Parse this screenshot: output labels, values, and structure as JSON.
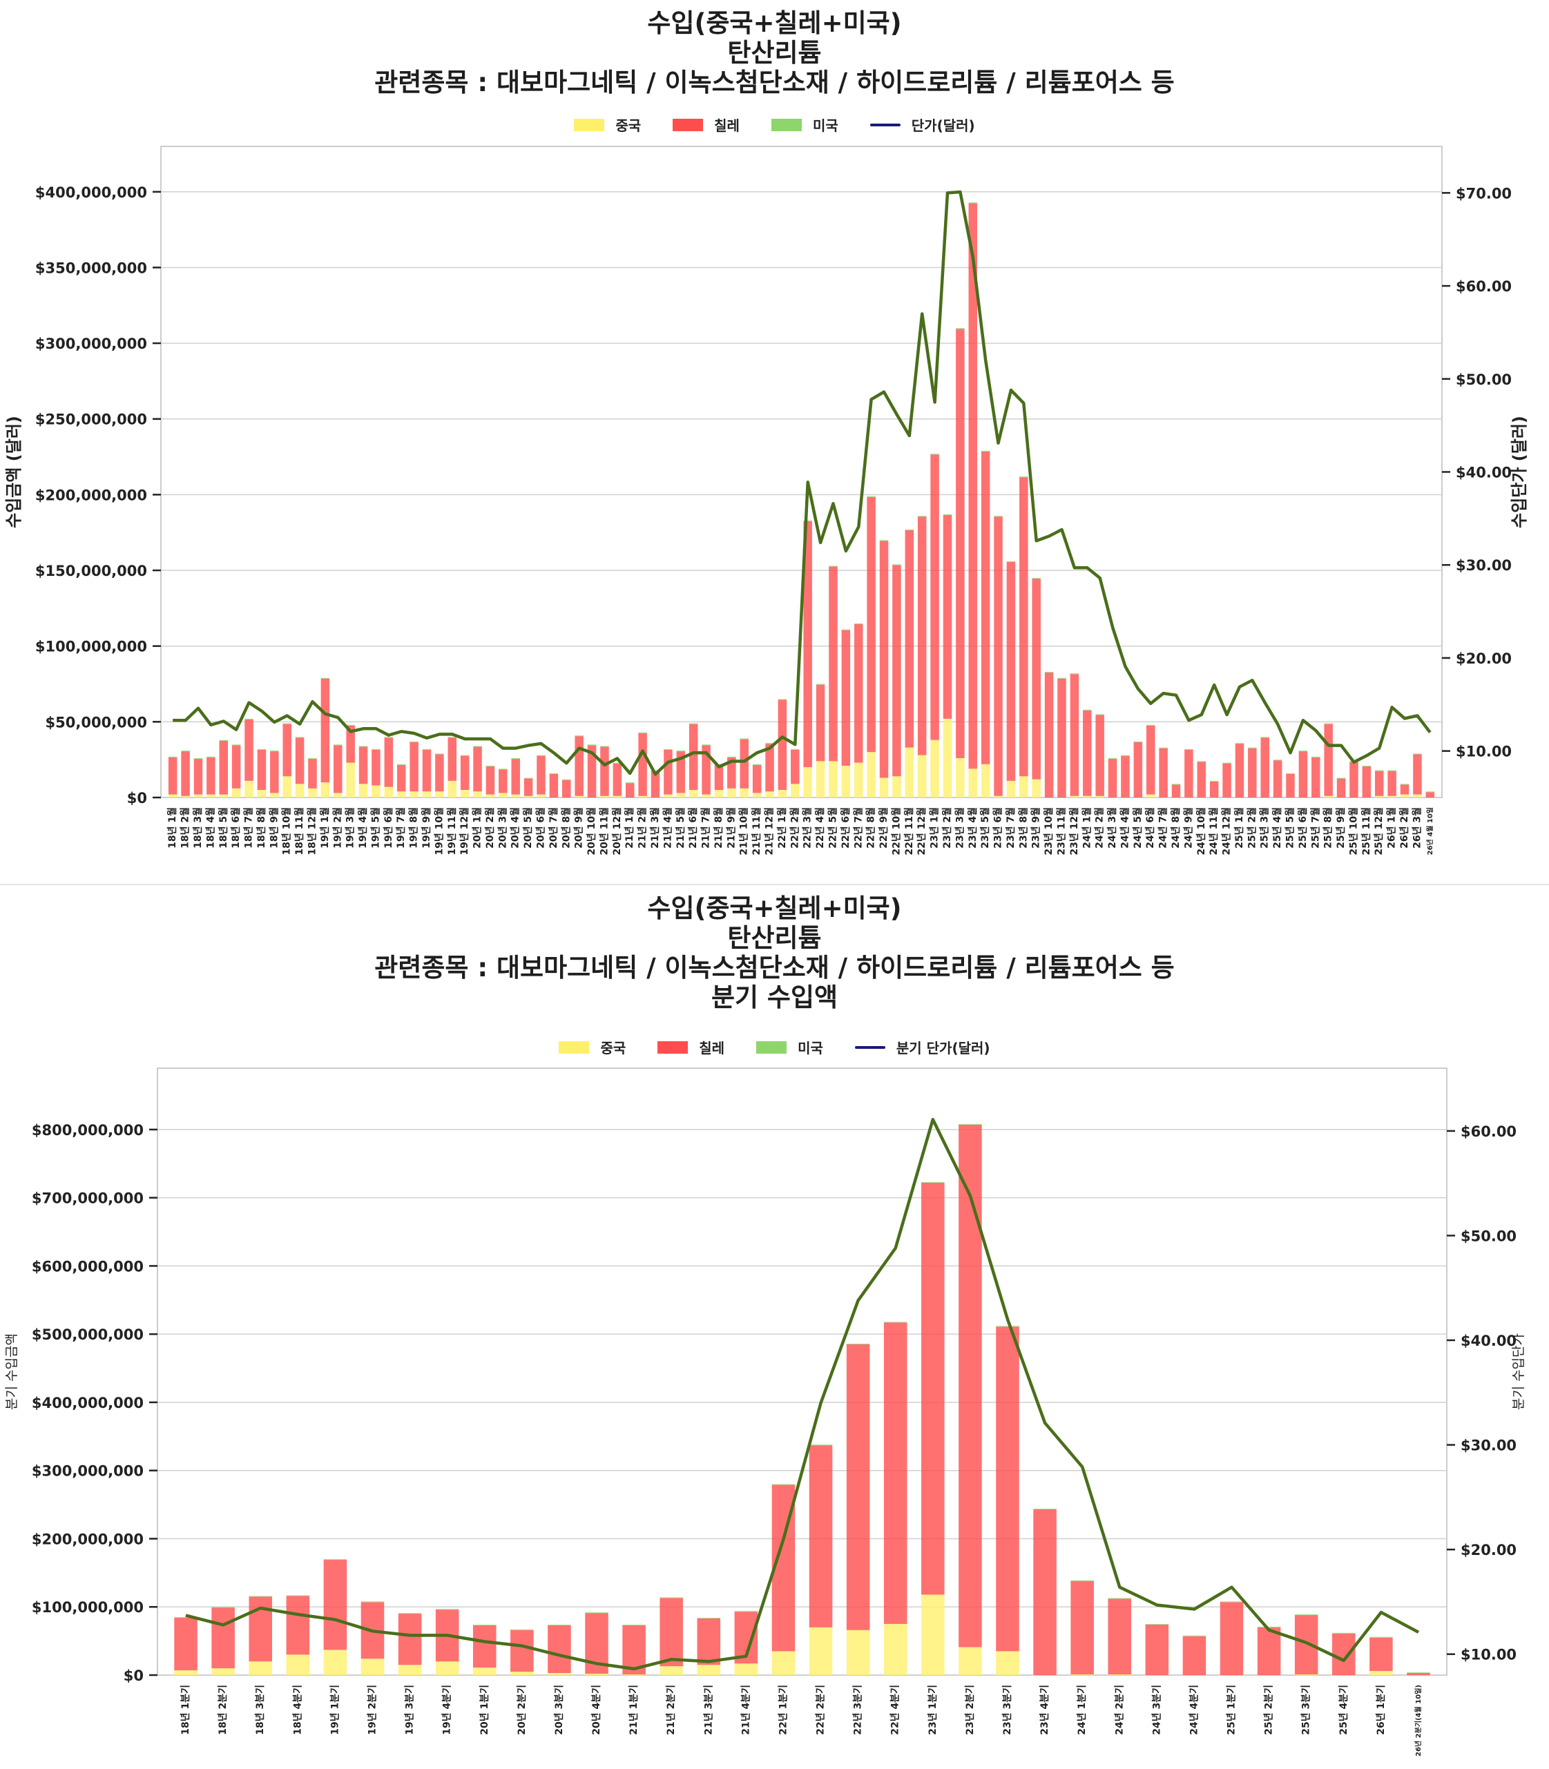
{
  "chart_data": [
    {
      "type": "bar",
      "stacked": true,
      "title_lines": [
        "수입(중국+칠레+미국)",
        "탄산리튬",
        "관련종목 : 대보마그네틱 / 이녹스첨단소재 / 하이드로리튬 / 리튬포어스 등"
      ],
      "ylabel": "수입금액 (달러)",
      "y2label": "수입단가 (달러)",
      "ylim": [
        0,
        430000000
      ],
      "y2lim": [
        5,
        75
      ],
      "yticks": [
        "$0",
        "$50,000,000",
        "$100,000,000",
        "$150,000,000",
        "$200,000,000",
        "$250,000,000",
        "$300,000,000",
        "$350,000,000",
        "$400,000,000"
      ],
      "ytick_values": [
        0,
        50000000,
        100000000,
        150000000,
        200000000,
        250000000,
        300000000,
        350000000,
        400000000
      ],
      "y2ticks": [
        "$10.00",
        "$20.00",
        "$30.00",
        "$40.00",
        "$50.00",
        "$60.00",
        "$70.00"
      ],
      "y2tick_values": [
        10,
        20,
        30,
        40,
        50,
        60,
        70
      ],
      "grid": true,
      "legend": {
        "placement": "top-center",
        "entries": [
          {
            "label": "중국",
            "color": "#fff06b"
          },
          {
            "label": "칠레",
            "color": "#ff4d4d"
          },
          {
            "label": "미국",
            "color": "#8ed66b"
          },
          {
            "label": "단가(달러)",
            "color": "#1a1a7a",
            "kind": "line"
          }
        ]
      },
      "categories": [
        "18년 1월",
        "18년 2월",
        "18년 3월",
        "18년 4월",
        "18년 5월",
        "18년 6월",
        "18년 7월",
        "18년 8월",
        "18년 9월",
        "18년 10월",
        "18년 11월",
        "18년 12월",
        "19년 1월",
        "19년 2월",
        "19년 3월",
        "19년 4월",
        "19년 5월",
        "19년 6월",
        "19년 7월",
        "19년 8월",
        "19년 9월",
        "19년 10월",
        "19년 11월",
        "19년 12월",
        "20년 1월",
        "20년 2월",
        "20년 3월",
        "20년 4월",
        "20년 5월",
        "20년 6월",
        "20년 7월",
        "20년 8월",
        "20년 9월",
        "20년 10월",
        "20년 11월",
        "20년 12월",
        "21년 1월",
        "21년 2월",
        "21년 3월",
        "21년 4월",
        "21년 5월",
        "21년 6월",
        "21년 7월",
        "21년 8월",
        "21년 9월",
        "21년 10월",
        "21년 11월",
        "21년 12월",
        "22년 1월",
        "22년 2월",
        "22년 3월",
        "22년 4월",
        "22년 5월",
        "22년 6월",
        "22년 7월",
        "22년 8월",
        "22년 9월",
        "22년 10월",
        "22년 11월",
        "22년 12월",
        "23년 1월",
        "23년 2월",
        "23년 3월",
        "23년 4월",
        "23년 5월",
        "23년 6월",
        "23년 7월",
        "23년 8월",
        "23년 9월",
        "23년 10월",
        "23년 11월",
        "23년 12월",
        "24년 1월",
        "24년 2월",
        "24년 3월",
        "24년 4월",
        "24년 5월",
        "24년 6월",
        "24년 7월",
        "24년 8월",
        "24년 9월",
        "24년 10월",
        "24년 11월",
        "24년 12월",
        "25년 1월",
        "25년 2월",
        "25년 3월",
        "25년 4월",
        "25년 5월",
        "25년 6월",
        "25년 7월",
        "25년 8월",
        "25년 9월",
        "25년 10월",
        "25년 11월",
        "25년 12월",
        "26년 1월",
        "26년 2월",
        "26년 3월",
        "26년 4월 10일"
      ],
      "series": [
        {
          "name": "중국",
          "unit": "USD millions",
          "values": [
            2,
            1,
            2,
            2,
            2,
            6,
            11,
            5,
            3,
            14,
            9,
            6,
            10,
            3,
            23,
            9,
            8,
            7,
            4,
            4,
            4,
            4,
            11,
            5,
            4,
            2,
            3,
            2,
            1,
            2,
            0,
            0,
            1,
            0,
            1,
            1,
            0,
            1,
            0,
            2,
            3,
            5,
            2,
            5,
            6,
            6,
            3,
            4,
            5,
            9,
            20,
            24,
            24,
            21,
            23,
            30,
            13,
            14,
            33,
            28,
            38,
            52,
            26,
            19,
            22,
            1,
            11,
            14,
            12,
            0,
            0,
            1,
            1,
            1,
            0,
            0,
            0,
            2,
            0,
            0,
            0,
            0,
            0,
            0,
            0,
            0,
            0,
            0,
            0,
            0,
            0,
            1,
            0,
            0,
            0,
            1,
            1,
            2,
            2,
            0
          ]
        },
        {
          "name": "칠레",
          "unit": "USD millions",
          "values": [
            24.5,
            29.5,
            23.5,
            24.5,
            35.5,
            28.5,
            40.5,
            26.5,
            27.5,
            34.5,
            30.5,
            19.5,
            68.5,
            31.5,
            24.5,
            24.5,
            23.5,
            32.5,
            17.5,
            32.5,
            27.5,
            24.5,
            28.5,
            22.5,
            29.5,
            18.5,
            15.5,
            23.5,
            11.5,
            25.5,
            15.5,
            11.5,
            39.5,
            34.5,
            32.5,
            21.5,
            9.5,
            41.5,
            17.5,
            29.5,
            27.5,
            43.5,
            32.5,
            16.5,
            20.5,
            32.5,
            18.5,
            31.5,
            59.5,
            22.5,
            162.5,
            50.5,
            128.5,
            89.5,
            91.5,
            168.5,
            156.5,
            139.5,
            143.5,
            157.5,
            188.5,
            134.5,
            283.5,
            373.5,
            206.5,
            184.5,
            144.5,
            197.5,
            132.5,
            82.5,
            78.5,
            80.5,
            56.5,
            53.5,
            25.5,
            27.5,
            36.5,
            45.5,
            32.5,
            8.5,
            31.5,
            23.5,
            10.5,
            22.5,
            35.5,
            32.5,
            39.5,
            24.5,
            15.5,
            30.5,
            26.5,
            47.5,
            12.5,
            23.5,
            20.5,
            16.5,
            16.5,
            6.5,
            26.5,
            3.5
          ]
        },
        {
          "name": "미국",
          "unit": "USD millions",
          "values": [
            0.5,
            0.5,
            0.5,
            0.5,
            0.5,
            0.5,
            0.5,
            0.5,
            0.5,
            0.5,
            0.5,
            0.5,
            0.5,
            0.5,
            0.5,
            0.5,
            0.5,
            0.5,
            0.5,
            0.5,
            0.5,
            0.5,
            0.5,
            0.5,
            0.5,
            0.5,
            0.5,
            0.5,
            0.5,
            0.5,
            0.5,
            0.5,
            0.5,
            0.5,
            0.5,
            0.5,
            0.5,
            0.5,
            0.5,
            0.5,
            0.5,
            0.5,
            0.5,
            0.5,
            0.5,
            0.5,
            0.5,
            0.5,
            0.5,
            0.5,
            0.5,
            0.5,
            0.5,
            0.5,
            0.5,
            0.5,
            0.5,
            0.5,
            0.5,
            0.5,
            0.5,
            0.5,
            0.5,
            0.5,
            0.5,
            0.5,
            0.5,
            0.5,
            0.5,
            0.5,
            0.5,
            0.5,
            0.5,
            0.5,
            0.5,
            0.5,
            0.5,
            0.5,
            0.5,
            0.5,
            0.5,
            0.5,
            0.5,
            0.5,
            0.5,
            0.5,
            0.5,
            0.5,
            0.5,
            0.5,
            0.5,
            0.5,
            0.5,
            0.5,
            0.5,
            0.5,
            0.5,
            0.5,
            0.5,
            0.5
          ]
        },
        {
          "name": "단가(달러)",
          "axis": "right",
          "line_color": "#4a6e1a",
          "values": [
            13.3,
            13.3,
            14.6,
            12.8,
            13.2,
            12.3,
            15.2,
            14.3,
            13.1,
            13.8,
            12.9,
            15.3,
            14.0,
            13.6,
            12.1,
            12.4,
            12.4,
            11.7,
            12.1,
            11.9,
            11.4,
            11.8,
            11.8,
            11.3,
            11.3,
            11.3,
            10.3,
            10.3,
            10.6,
            10.8,
            9.8,
            8.7,
            10.3,
            9.8,
            8.5,
            9.2,
            7.6,
            10.0,
            7.5,
            8.8,
            9.2,
            9.8,
            9.8,
            8.3,
            8.9,
            8.9,
            9.8,
            10.3,
            11.5,
            10.7,
            38.9,
            32.4,
            36.6,
            31.5,
            34.1,
            47.8,
            48.6,
            46.2,
            43.9,
            57.0,
            47.5,
            70.0,
            70.1,
            63.1,
            52.0,
            43.1,
            48.8,
            47.4,
            32.6,
            33.1,
            33.8,
            29.7,
            29.7,
            28.6,
            23.3,
            19.1,
            16.7,
            15.1,
            16.2,
            16.0,
            13.3,
            13.9,
            17.1,
            13.9,
            16.9,
            17.6,
            15.2,
            12.9,
            9.8,
            13.3,
            12.2,
            10.6,
            10.6,
            8.8,
            9.5,
            10.3,
            14.7,
            13.5,
            13.8,
            12.0
          ]
        }
      ]
    },
    {
      "type": "bar",
      "stacked": true,
      "title_lines": [
        "수입(중국+칠레+미국)",
        "탄산리튬",
        "관련종목 : 대보마그네틱 / 이녹스첨단소재 / 하이드로리튬 / 리튬포어스 등",
        "분기 수입액"
      ],
      "ylabel": "분기 수입금액",
      "y2label": "분기 수입단가",
      "ylim": [
        0,
        890000000
      ],
      "y2lim": [
        8,
        66
      ],
      "yticks": [
        "$0",
        "$100,000,000",
        "$200,000,000",
        "$300,000,000",
        "$400,000,000",
        "$500,000,000",
        "$600,000,000",
        "$700,000,000",
        "$800,000,000"
      ],
      "ytick_values": [
        0,
        100000000,
        200000000,
        300000000,
        400000000,
        500000000,
        600000000,
        700000000,
        800000000
      ],
      "y2ticks": [
        "$10.00",
        "$20.00",
        "$30.00",
        "$40.00",
        "$50.00",
        "$60.00"
      ],
      "y2tick_values": [
        10,
        20,
        30,
        40,
        50,
        60
      ],
      "grid": true,
      "legend": {
        "placement": "top-center",
        "entries": [
          {
            "label": "중국",
            "color": "#fff06b"
          },
          {
            "label": "칠레",
            "color": "#ff4d4d"
          },
          {
            "label": "미국",
            "color": "#8ed66b"
          },
          {
            "label": "분기 단가(달러)",
            "color": "#1a1a7a",
            "kind": "line"
          }
        ]
      },
      "categories": [
        "18년 1분기",
        "18년 2분기",
        "18년 3분기",
        "18년 4분기",
        "19년 1분기",
        "19년 2분기",
        "19년 3분기",
        "19년 4분기",
        "20년 1분기",
        "20년 2분기",
        "20년 3분기",
        "20년 4분기",
        "21년 1분기",
        "21년 2분기",
        "21년 3분기",
        "21년 4분기",
        "22년 1분기",
        "22년 2분기",
        "22년 3분기",
        "22년 4분기",
        "23년 1분기",
        "23년 2분기",
        "23년 3분기",
        "23년 4분기",
        "24년 1분기",
        "24년 2분기",
        "24년 3분기",
        "24년 4분기",
        "25년 1분기",
        "25년 2분기",
        "25년 3분기",
        "25년 4분기",
        "26년 1분기",
        "26년 2분기(4월 10일)"
      ],
      "series": [
        {
          "name": "중국",
          "unit": "USD millions",
          "values": [
            7,
            10,
            20,
            30,
            37,
            24,
            15,
            20,
            11,
            5,
            3,
            2,
            1,
            13,
            15,
            17,
            35,
            70,
            66,
            75,
            118,
            41,
            35,
            0,
            1,
            1,
            0,
            0,
            0,
            0,
            1,
            0,
            6,
            0
          ]
        },
        {
          "name": "칠레",
          "unit": "USD millions",
          "values": [
            77,
            89,
            95,
            86,
            132,
            83,
            75,
            76,
            62,
            61,
            70,
            89,
            72,
            100,
            68,
            76,
            244,
            267,
            419,
            442,
            604,
            766,
            476,
            243,
            137,
            111,
            74,
            57,
            107,
            70,
            87,
            61,
            49,
            3
          ]
        },
        {
          "name": "미국",
          "unit": "USD millions",
          "values": [
            1,
            1,
            1,
            1,
            1,
            1,
            1,
            1,
            1,
            1,
            1,
            1,
            1,
            1,
            1,
            1,
            1,
            1,
            1,
            1,
            1,
            1,
            1,
            1,
            1,
            1,
            1,
            1,
            1,
            1,
            1,
            1,
            1,
            1
          ]
        },
        {
          "name": "분기 단가(달러)",
          "axis": "right",
          "line_color": "#4a6e1a",
          "values": [
            13.7,
            12.8,
            14.4,
            13.8,
            13.3,
            12.2,
            11.8,
            11.8,
            11.2,
            10.8,
            9.9,
            9.1,
            8.6,
            9.5,
            9.3,
            9.8,
            21.0,
            34.0,
            43.8,
            48.8,
            61.1,
            53.8,
            42.0,
            32.1,
            27.9,
            16.4,
            14.7,
            14.3,
            16.4,
            12.3,
            11.1,
            9.4,
            14.0,
            12.1
          ]
        }
      ]
    }
  ]
}
